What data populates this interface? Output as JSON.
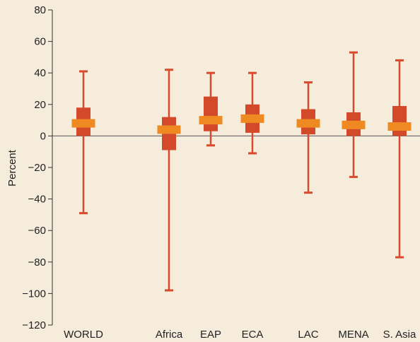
{
  "chart_data": {
    "type": "boxplot",
    "title": "",
    "xlabel": "",
    "ylabel": "Percent",
    "ylim": [
      -120,
      80
    ],
    "yticks": [
      80,
      60,
      40,
      20,
      0,
      -20,
      -40,
      -60,
      -80,
      -100,
      -120
    ],
    "grid": false,
    "colors": {
      "whisker": "#d84a2b",
      "box": "#d24a2a",
      "median": "#ef8a23",
      "zero_line": "#555555",
      "background": "#f5ecdc"
    },
    "categories": [
      {
        "label": "WORLD",
        "min": -49,
        "q1": 0,
        "median": 8,
        "q3": 18,
        "max": 41
      },
      {
        "label": "Africa",
        "min": -98,
        "q1": -9,
        "median": 4,
        "q3": 12,
        "max": 42
      },
      {
        "label": "EAP",
        "min": -6,
        "q1": 3,
        "median": 10,
        "q3": 25,
        "max": 40
      },
      {
        "label": "ECA",
        "min": -11,
        "q1": 2,
        "median": 11,
        "q3": 20,
        "max": 40
      },
      {
        "label": "LAC",
        "min": -36,
        "q1": 1,
        "median": 8,
        "q3": 17,
        "max": 34
      },
      {
        "label": "MENA",
        "min": -26,
        "q1": 0,
        "median": 7,
        "q3": 15,
        "max": 53
      },
      {
        "label": "S. Asia",
        "min": -77,
        "q1": 0,
        "median": 6,
        "q3": 19,
        "max": 48
      }
    ]
  }
}
